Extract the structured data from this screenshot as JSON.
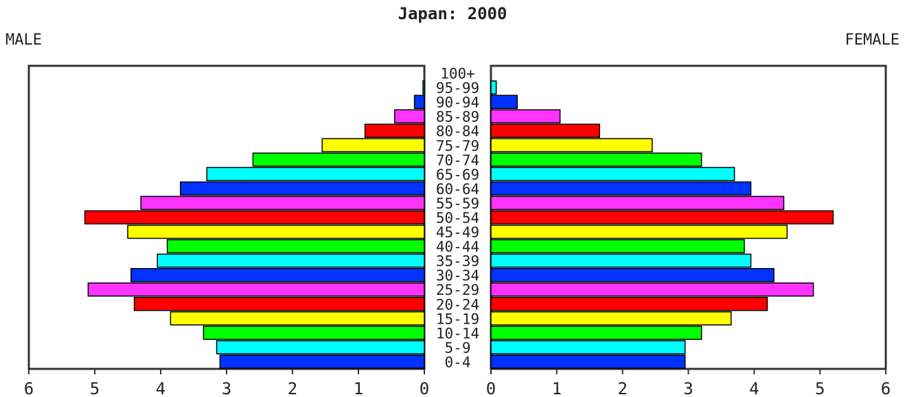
{
  "title": "Japan: 2000",
  "labels": {
    "left": "MALE",
    "right": "FEMALE"
  },
  "chart_data": {
    "type": "bar",
    "orientation": "horizontal-pyramid",
    "categories": [
      "0-4",
      "5-9",
      "10-14",
      "15-19",
      "20-24",
      "25-29",
      "30-34",
      "35-39",
      "40-44",
      "45-49",
      "50-54",
      "55-59",
      "60-64",
      "65-69",
      "70-74",
      "75-79",
      "80-84",
      "85-89",
      "90-94",
      "95-99",
      "100+"
    ],
    "series": [
      {
        "name": "MALE",
        "values": [
          3.1,
          3.15,
          3.35,
          3.85,
          4.4,
          5.1,
          4.45,
          4.05,
          3.9,
          4.5,
          5.15,
          4.3,
          3.7,
          3.3,
          2.6,
          1.55,
          0.9,
          0.45,
          0.15,
          0.02,
          0.0
        ]
      },
      {
        "name": "FEMALE",
        "values": [
          2.95,
          2.95,
          3.2,
          3.65,
          4.2,
          4.9,
          4.3,
          3.95,
          3.85,
          4.5,
          5.2,
          4.45,
          3.95,
          3.7,
          3.2,
          2.45,
          1.65,
          1.05,
          0.4,
          0.08,
          0.0
        ]
      }
    ],
    "bar_colors": [
      "#0033ff",
      "#00ffff",
      "#00ff00",
      "#ffff00",
      "#ff0000",
      "#ff33ff"
    ],
    "xlim": [
      0,
      6
    ],
    "xticks": [
      "0",
      "1",
      "2",
      "3",
      "4",
      "5",
      "6"
    ]
  }
}
